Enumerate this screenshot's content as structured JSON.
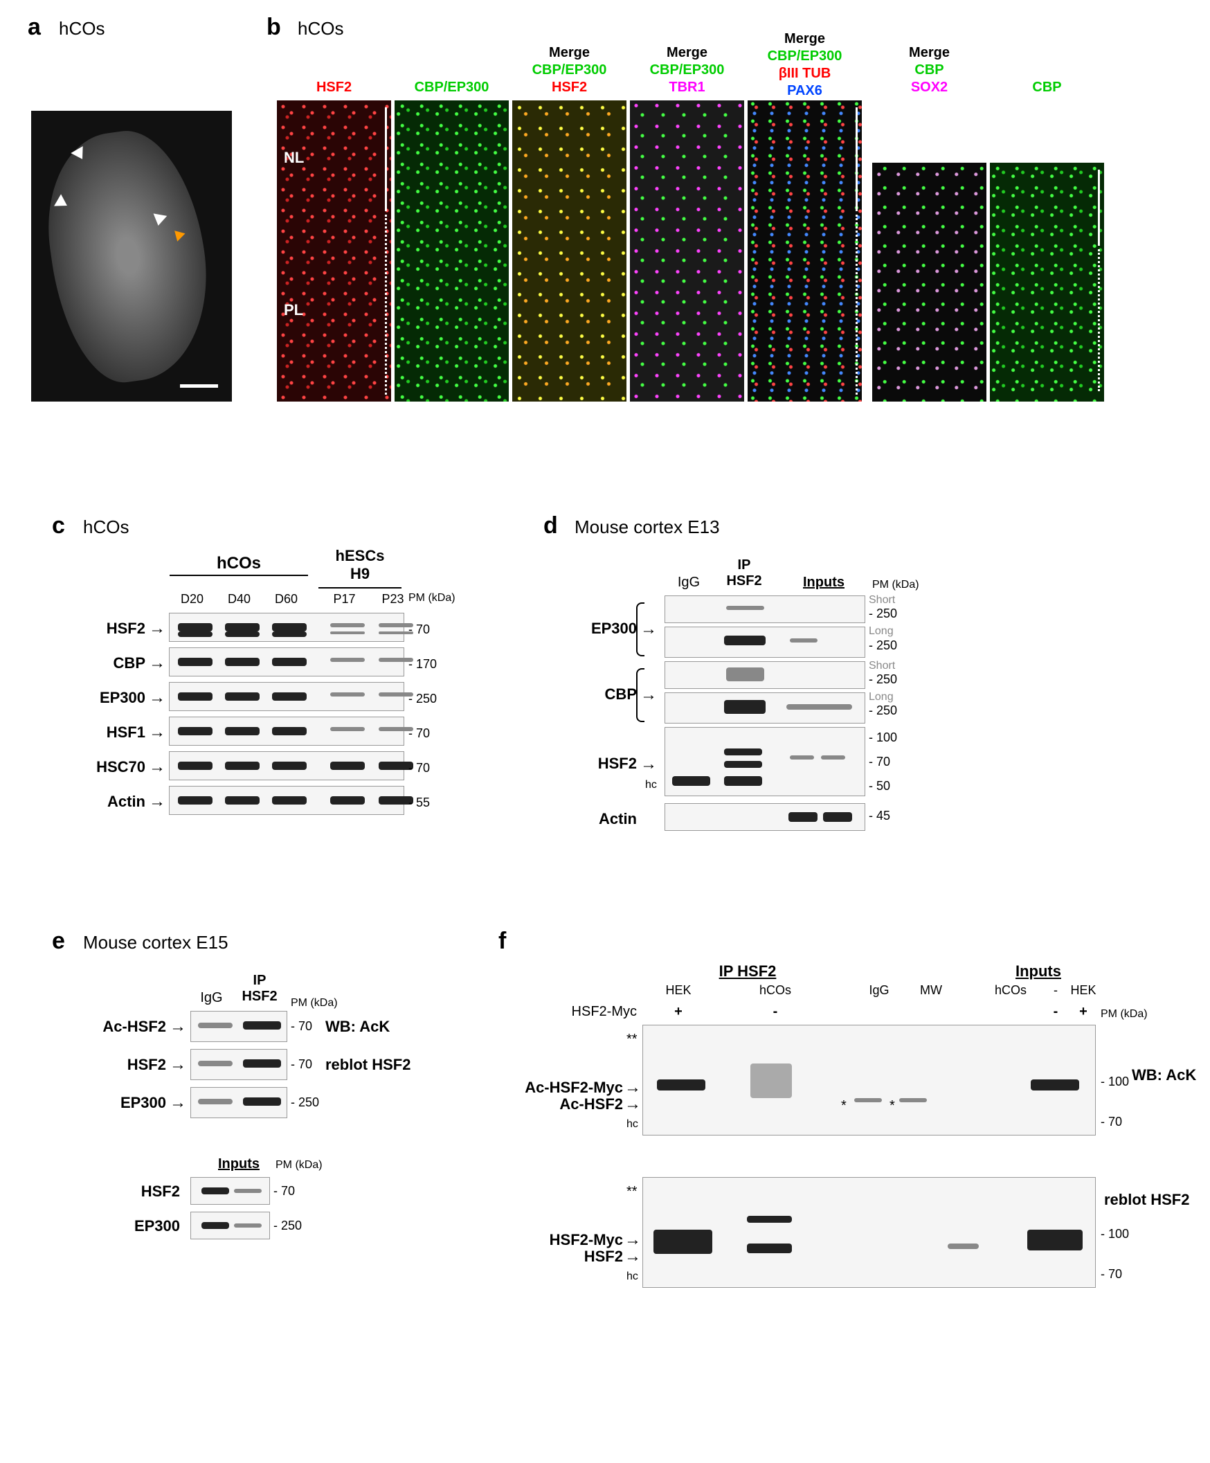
{
  "panelA": {
    "letter": "a",
    "title": "hCOs",
    "nl_label": "NL",
    "pl_label": "PL"
  },
  "panelB": {
    "letter": "b",
    "title": "hCOs",
    "headers": {
      "col1": {
        "l1": "",
        "l2": "HSF2",
        "color": "#ff0000"
      },
      "col2": {
        "l1": "",
        "l2": "CBP/EP300",
        "color": "#00cc00"
      },
      "col3": {
        "l0": "Merge",
        "l1": "CBP/EP300",
        "l2": "HSF2",
        "c1": "#00cc00",
        "c2": "#ff0000"
      },
      "col4": {
        "l0": "Merge",
        "l1": "CBP/EP300",
        "l2": "TBR1",
        "c1": "#00cc00",
        "c2": "#ff00ff"
      },
      "col5": {
        "l0": "Merge",
        "l1": "CBP/EP300",
        "l2": "βIII TUB",
        "l3": "PAX6",
        "c1": "#00cc00",
        "c2": "#ff0000",
        "c3": "#0044ff"
      },
      "col6": {
        "l0": "Merge",
        "l1": "CBP",
        "l2": "SOX2",
        "c1": "#00cc00",
        "c2": "#ff00ff"
      },
      "col7": {
        "l1": "",
        "l2": "CBP",
        "color": "#00cc00"
      }
    }
  },
  "panelC": {
    "letter": "c",
    "title": "hCOs",
    "group1": "hCOs",
    "group2": "hESCs\nH9",
    "lanes": [
      "D20",
      "D40",
      "D60",
      "P17",
      "P23"
    ],
    "rows": [
      {
        "label": "HSF2",
        "mw": "70"
      },
      {
        "label": "CBP",
        "mw": "170"
      },
      {
        "label": "EP300",
        "mw": "250"
      },
      {
        "label": "HSF1",
        "mw": "70"
      },
      {
        "label": "HSC70",
        "mw": "70"
      },
      {
        "label": "Actin",
        "mw": "55"
      }
    ],
    "pm_label": "PM (kDa)"
  },
  "panelD": {
    "letter": "d",
    "title": "Mouse cortex E13",
    "lanes": {
      "igg": "IgG",
      "ip": "IP\nHSF2",
      "inputs": "Inputs"
    },
    "rows": [
      {
        "label": "EP300",
        "sub": [
          "Short",
          "Long"
        ],
        "mw": "250"
      },
      {
        "label": "CBP",
        "sub": [
          "Short",
          "Long"
        ],
        "mw": "250"
      },
      {
        "label": "HSF2",
        "mws": [
          "100",
          "70",
          "50"
        ]
      },
      {
        "label": "Actin",
        "mw": "45"
      }
    ],
    "hc": "hc",
    "pm_label": "PM (kDa)"
  },
  "panelE": {
    "letter": "e",
    "title": "Mouse cortex E15",
    "lanes": {
      "igg": "IgG",
      "ip": "IP\nHSF2"
    },
    "rows": [
      {
        "label": "Ac-HSF2",
        "mw": "70",
        "note": "WB: AcK"
      },
      {
        "label": "HSF2",
        "mw": "70",
        "note": "reblot HSF2"
      },
      {
        "label": "EP300",
        "mw": "250"
      }
    ],
    "inputs_label": "Inputs",
    "input_rows": [
      {
        "label": "HSF2",
        "mw": "70"
      },
      {
        "label": "EP300",
        "mw": "250"
      }
    ],
    "pm_label": "PM (kDa)"
  },
  "panelF": {
    "letter": "f",
    "groups": {
      "ip": "IP HSF2",
      "inputs": "Inputs"
    },
    "lanes_top": [
      "HEK",
      "hCOs",
      "IgG",
      "MW",
      "hCOs",
      "-",
      "HEK"
    ],
    "hsf2myc_row": "HSF2-Myc",
    "hsf2myc_vals": [
      "+",
      "-",
      "",
      "",
      "",
      "-",
      "+"
    ],
    "left_labels_top": [
      "Ac-HSF2-Myc",
      "Ac-HSF2"
    ],
    "left_labels_bot": [
      "HSF2-Myc",
      "HSF2"
    ],
    "right_top": "WB: AcK",
    "right_bot": "reblot HSF2",
    "mws": [
      "100",
      "70"
    ],
    "hc": "hc",
    "stars": "**",
    "star1": "*",
    "pm_label": "PM (kDa)"
  }
}
